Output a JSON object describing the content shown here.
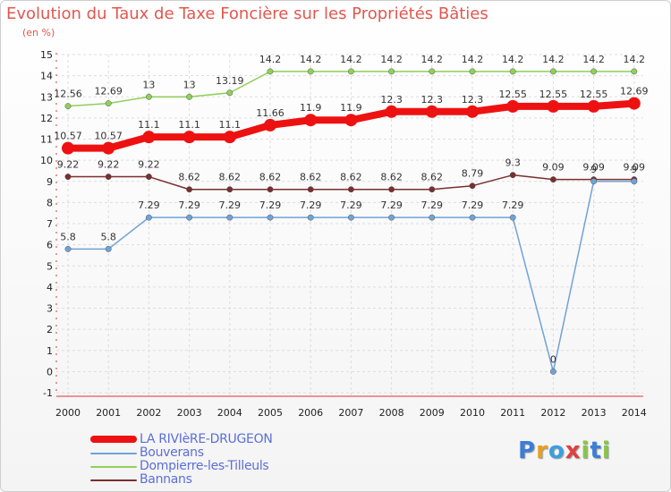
{
  "chart_data": {
    "type": "line",
    "title": "Evolution du Taux de Taxe Foncière sur les Propriétés Bâties",
    "unit_label": "(en %)",
    "xlabel": "",
    "ylabel": "",
    "ylim": [
      -1,
      15
    ],
    "yticks": [
      -1,
      0,
      1,
      2,
      3,
      4,
      5,
      6,
      7,
      8,
      9,
      10,
      11,
      12,
      13,
      14,
      15
    ],
    "x": [
      "2000",
      "2001",
      "2002",
      "2003",
      "2004",
      "2005",
      "2006",
      "2007",
      "2008",
      "2009",
      "2010",
      "2011",
      "2012",
      "2013",
      "2014"
    ],
    "series": [
      {
        "name": "Dompierre-les-Tilleuls",
        "color": "#8fd05a",
        "values": [
          12.56,
          12.69,
          13,
          13,
          13.19,
          14.2,
          14.2,
          14.2,
          14.2,
          14.2,
          14.2,
          14.2,
          14.2,
          14.2,
          14.2
        ],
        "labels": [
          "12.56",
          "12.69",
          "13",
          "13",
          "13.19",
          "14.2",
          "14.2",
          "14.2",
          "14.2",
          "14.2",
          "14.2",
          "14.2",
          "14.2",
          "14.2",
          "14.2"
        ]
      },
      {
        "name": "Bannans",
        "color": "#7a2e2e",
        "values": [
          9.22,
          9.22,
          9.22,
          8.62,
          8.62,
          8.62,
          8.62,
          8.62,
          8.62,
          8.62,
          8.79,
          9.3,
          9.09,
          9.09,
          9.09
        ],
        "labels": [
          "9.22",
          "9.22",
          "9.22",
          "8.62",
          "8.62",
          "8.62",
          "8.62",
          "8.62",
          "8.62",
          "8.62",
          "8.79",
          "9.3",
          "9.09",
          "9.09",
          "9.09"
        ]
      },
      {
        "name": "Bouverans",
        "color": "#6fa3d6",
        "values": [
          5.8,
          5.8,
          7.29,
          7.29,
          7.29,
          7.29,
          7.29,
          7.29,
          7.29,
          7.29,
          7.29,
          7.29,
          0,
          9,
          9
        ],
        "labels": [
          "5.8",
          "5.8",
          "7.29",
          "7.29",
          "7.29",
          "7.29",
          "7.29",
          "7.29",
          "7.29",
          "7.29",
          "7.29",
          "7.29",
          "0",
          "9",
          "9"
        ]
      },
      {
        "name": "LA RIVIèRE-DRUGEON",
        "color": "#ee1111",
        "values": [
          10.57,
          10.57,
          11.1,
          11.1,
          11.1,
          11.66,
          11.9,
          11.9,
          12.3,
          12.3,
          12.3,
          12.55,
          12.55,
          12.55,
          12.69
        ],
        "labels": [
          "10.57",
          "10.57",
          "11.1",
          "11.1",
          "11.1",
          "11.66",
          "11.9",
          "11.9",
          "12.3",
          "12.3",
          "12.3",
          "12.55",
          "12.55",
          "12.55",
          "12.69"
        ]
      }
    ],
    "legend": [
      {
        "name": "LA RIVIèRE-DRUGEON",
        "color": "#ee1111"
      },
      {
        "name": "Bouverans",
        "color": "#6fa3d6"
      },
      {
        "name": "Dompierre-les-Tilleuls",
        "color": "#8fd05a"
      },
      {
        "name": "Bannans",
        "color": "#7a2e2e"
      }
    ]
  },
  "brand": {
    "letters": [
      "P",
      "r",
      "o",
      "x",
      "i",
      "t",
      "i"
    ],
    "colors": [
      "#3b7dd8",
      "#e8a020",
      "#3aa0e0",
      "#e04040",
      "#8bc34a",
      "#3b7dd8",
      "#8bc34a"
    ]
  }
}
